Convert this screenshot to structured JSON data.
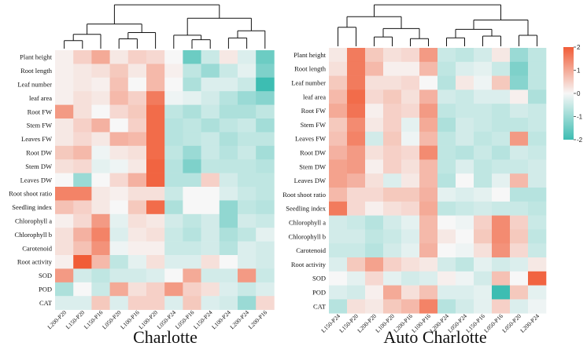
{
  "chart_data": [
    {
      "type": "heatmap",
      "title": "Charlotte",
      "rows": [
        "Plant height",
        "Root length",
        "Leaf number",
        "leaf area",
        "Root FW",
        "Stem FW",
        "Leaves FW",
        "Root DW",
        "Stem DW",
        "Leaves DW",
        "Root shoot ratio",
        "Seedling index",
        "Chlorophyll a",
        "Chlorophyll b",
        "Carotenoid",
        "Root activity",
        "SOD",
        "POD",
        "CAT"
      ],
      "columns": [
        "L200-P20",
        "L150-P20",
        "L150-P16",
        "L050-P20",
        "L100-P16",
        "L100-P20",
        "L050-P24",
        "L050-P16",
        "L150-P24",
        "L100-P24",
        "L200-P24",
        "L200-P16"
      ],
      "values": [
        [
          0.1,
          0.5,
          1.0,
          0.2,
          0.5,
          0.4,
          0.0,
          -1.5,
          -0.5,
          0.2,
          -0.3,
          -1.5
        ],
        [
          0.1,
          0.2,
          0.3,
          0.6,
          0.2,
          0.8,
          0.1,
          -0.6,
          -1.0,
          -0.5,
          -0.2,
          -1.3
        ],
        [
          0.1,
          0.2,
          0.1,
          0.7,
          0.0,
          0.8,
          0.0,
          -0.8,
          -0.3,
          -0.3,
          -0.5,
          -2.0
        ],
        [
          0.1,
          0.3,
          0.2,
          0.8,
          0.5,
          1.6,
          -0.1,
          -0.2,
          -0.4,
          -0.7,
          -1.0,
          -1.2
        ],
        [
          1.2,
          0.3,
          0.0,
          0.4,
          0.6,
          1.8,
          -0.6,
          -0.8,
          -0.5,
          -0.8,
          -0.8,
          -0.6
        ],
        [
          0.2,
          0.5,
          0.9,
          0.0,
          0.5,
          1.8,
          -0.7,
          -0.6,
          -0.8,
          -0.6,
          -0.5,
          -0.9
        ],
        [
          0.2,
          0.4,
          0.2,
          0.9,
          0.8,
          1.8,
          -0.7,
          -0.6,
          -0.5,
          -0.8,
          -0.6,
          -0.6
        ],
        [
          0.6,
          0.8,
          -0.1,
          0.2,
          0.3,
          1.8,
          -0.6,
          -1.0,
          -0.5,
          -0.7,
          -0.5,
          -0.9
        ],
        [
          0.3,
          0.4,
          -0.2,
          -0.1,
          0.2,
          1.9,
          -0.7,
          -1.3,
          -0.6,
          -0.6,
          -0.6,
          -0.7
        ],
        [
          0.0,
          -1.0,
          0.0,
          0.4,
          0.9,
          1.9,
          -0.7,
          -0.7,
          0.5,
          -0.4,
          -0.6,
          -0.6
        ],
        [
          1.5,
          1.5,
          0.2,
          0.1,
          0.3,
          0.3,
          -0.5,
          0.0,
          0.0,
          -0.3,
          -0.5,
          -0.6
        ],
        [
          0.7,
          0.5,
          0.2,
          0.0,
          0.6,
          1.8,
          -0.8,
          0.0,
          0.0,
          -1.1,
          -0.6,
          -0.7
        ],
        [
          0.1,
          0.4,
          1.2,
          -0.2,
          0.3,
          0.2,
          -0.4,
          -0.6,
          -0.4,
          -1.1,
          -0.4,
          -0.5
        ],
        [
          0.3,
          0.9,
          1.5,
          -0.3,
          0.2,
          0.3,
          -0.5,
          -0.7,
          -0.4,
          -0.8,
          -0.6,
          -0.2
        ],
        [
          0.3,
          0.7,
          1.3,
          -0.1,
          0.1,
          0.1,
          -0.5,
          -0.5,
          -0.4,
          -0.7,
          -0.3,
          -0.4
        ],
        [
          0.1,
          2.0,
          0.8,
          -0.6,
          -0.2,
          0.3,
          -0.3,
          -0.3,
          0.3,
          0.0,
          -0.3,
          -0.4
        ],
        [
          1.2,
          -0.4,
          -0.6,
          -0.4,
          -0.4,
          -0.3,
          0.0,
          1.0,
          -0.4,
          -0.4,
          1.2,
          -0.5
        ],
        [
          -0.8,
          0.0,
          -0.5,
          1.0,
          0.3,
          0.5,
          1.2,
          0.5,
          0.3,
          -0.3,
          -0.5,
          -0.3
        ],
        [
          -0.3,
          -0.3,
          0.6,
          -0.3,
          0.5,
          0.5,
          -0.3,
          0.6,
          -0.3,
          -0.4,
          -1.0,
          0.4
        ]
      ],
      "colorbar": {
        "min": -2,
        "max": 2,
        "ticks": [
          "-2",
          "-1",
          "0",
          "1",
          "2"
        ]
      }
    },
    {
      "type": "heatmap",
      "title": "Auto Charlotte",
      "rows": [
        "Plant height",
        "Root length",
        "Leaf number",
        "leaf area",
        "Root FW",
        "Stem FW",
        "Leaves FW",
        "Root DW",
        "Stem DW",
        "Leaves DW",
        "Root shoot ratio",
        "Seedling index",
        "Chlorophyll a",
        "Chlorophyll b",
        "Carotenoid",
        "Root activity",
        "SOD",
        "POD",
        "CAT"
      ],
      "columns": [
        "L150-P24",
        "L150-P20",
        "L200-P20",
        "L100-P20",
        "L200-P16",
        "L100-P16",
        "L200-P24",
        "L050-P24",
        "L150-P16",
        "L050-P16",
        "L050-P20",
        "L200-P24"
      ],
      "values": [
        [
          0.2,
          1.6,
          0.6,
          0.3,
          0.4,
          1.2,
          -0.5,
          -0.6,
          -0.4,
          0.2,
          -1.0,
          -0.6
        ],
        [
          0.3,
          1.6,
          0.8,
          0.1,
          0.1,
          0.8,
          -0.6,
          -0.3,
          -0.2,
          -0.5,
          -1.3,
          -0.6
        ],
        [
          0.6,
          1.6,
          0.3,
          0.3,
          0.4,
          0.0,
          -0.7,
          0.2,
          -0.1,
          0.6,
          -1.2,
          -0.6
        ],
        [
          0.8,
          1.8,
          0.4,
          0.6,
          0.3,
          0.9,
          -0.4,
          -0.5,
          -0.3,
          -0.3,
          0.1,
          -0.8
        ],
        [
          1.0,
          1.7,
          0.1,
          0.5,
          0.4,
          1.2,
          -0.6,
          -0.5,
          -0.5,
          -0.6,
          -0.4,
          -0.5
        ],
        [
          0.6,
          1.4,
          0.2,
          0.5,
          -0.2,
          1.0,
          -0.8,
          -0.4,
          -0.5,
          -0.6,
          -0.6,
          -0.5
        ],
        [
          0.7,
          1.5,
          -0.4,
          0.6,
          -0.1,
          0.8,
          -0.6,
          -0.4,
          -0.6,
          -0.5,
          1.2,
          -0.6
        ],
        [
          0.9,
          1.2,
          0.3,
          0.5,
          0.4,
          1.4,
          -0.6,
          -0.7,
          -0.5,
          -0.7,
          -0.4,
          -0.5
        ],
        [
          1.1,
          1.2,
          0.1,
          0.5,
          0.3,
          0.8,
          -0.6,
          -0.3,
          -0.6,
          -0.5,
          -0.5,
          -0.4
        ],
        [
          1.1,
          0.9,
          0.3,
          -0.3,
          0.2,
          0.8,
          -0.7,
          0.0,
          -0.6,
          -0.2,
          0.8,
          -0.4
        ],
        [
          0.8,
          0.4,
          0.4,
          0.6,
          0.6,
          0.9,
          -0.2,
          -0.3,
          -0.2,
          0.0,
          -0.7,
          -0.7
        ],
        [
          1.6,
          0.4,
          0.1,
          0.3,
          0.4,
          1.0,
          -0.6,
          -0.5,
          -0.4,
          -0.5,
          -0.5,
          -0.6
        ],
        [
          -0.4,
          -0.5,
          -0.7,
          -0.4,
          -0.2,
          0.8,
          0.0,
          -0.1,
          0.5,
          1.4,
          0.5,
          -0.5
        ],
        [
          -0.4,
          -0.4,
          -0.6,
          -0.5,
          -0.3,
          0.8,
          0.2,
          0.0,
          0.6,
          1.4,
          0.6,
          -0.6
        ],
        [
          -0.5,
          -0.5,
          -0.7,
          -0.4,
          -0.2,
          0.9,
          0.0,
          -0.1,
          0.3,
          1.3,
          0.4,
          -0.5
        ],
        [
          -0.3,
          0.6,
          1.1,
          0.5,
          0.3,
          0.2,
          -0.4,
          -0.6,
          -0.2,
          -0.4,
          -0.3,
          0.2
        ],
        [
          0.0,
          -0.2,
          0.4,
          -0.2,
          -0.4,
          -0.3,
          0.1,
          -0.1,
          -0.4,
          0.7,
          0.0,
          1.9
        ],
        [
          -0.3,
          -0.4,
          0.1,
          1.0,
          0.3,
          0.7,
          -0.3,
          -0.3,
          -0.2,
          -2.0,
          0.6,
          -0.2
        ],
        [
          -0.7,
          0.3,
          0.2,
          0.6,
          0.8,
          1.5,
          -0.7,
          -0.4,
          -0.2,
          0.5,
          -0.3,
          -0.1
        ]
      ],
      "colorbar": {
        "min": -2,
        "max": 2,
        "ticks": [
          "2",
          "1",
          "0",
          "-1",
          "-2"
        ]
      }
    }
  ],
  "colors": {
    "low": "#3dbdb2",
    "mid": "#f7f7f7",
    "high": "#f15c37"
  }
}
